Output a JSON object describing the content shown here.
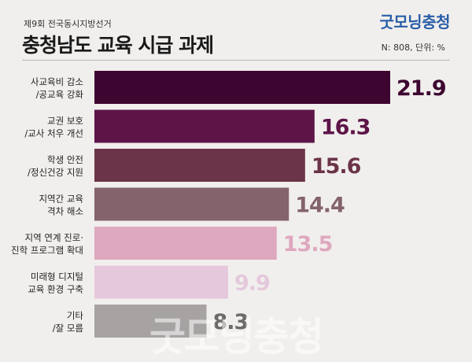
{
  "header": {
    "subtitle": "제9회 전국동시지방선거",
    "title": "충청남도 교육 시급 과제",
    "brand": "굿모닝충청",
    "sample_note": "N: 808, 단위: %"
  },
  "watermark": "굿모닝충청",
  "chart_data": {
    "type": "bar",
    "orientation": "horizontal",
    "title": "충청남도 교육 시급 과제",
    "categories": [
      [
        "사교육비 감소",
        "/공교육 강화"
      ],
      [
        "교권 보호",
        "/교사 처우 개선"
      ],
      [
        "학생 안전",
        "/정신건강 지원"
      ],
      [
        "지역간 교육",
        "격차 해소"
      ],
      [
        "지역 연계 진로·",
        "진학 프로그램 확대"
      ],
      [
        "미래형 디지털",
        "교육 환경 구축"
      ],
      [
        "기타",
        "/잘 모름"
      ]
    ],
    "values": [
      21.9,
      16.3,
      15.6,
      14.4,
      13.5,
      9.9,
      8.3
    ],
    "bar_colors": [
      "#3d0630",
      "#5d1548",
      "#6b3449",
      "#84636c",
      "#dea8bf",
      "#e5c8dc",
      "#a6a3a2"
    ],
    "label_colors": [
      "#3d0630",
      "#5d1548",
      "#6b3449",
      "#84636c",
      "#dea8bf",
      "#e5c8dc",
      "#6d6a69"
    ],
    "xlim": [
      0,
      21.9
    ],
    "grid": false,
    "legend": "none"
  }
}
